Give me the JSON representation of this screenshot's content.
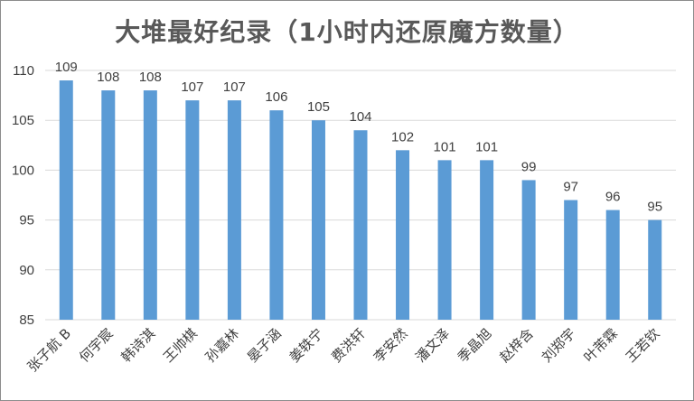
{
  "chart_data": {
    "type": "bar",
    "title": "大堆最好纪录（1小时内还原魔方数量）",
    "xlabel": "",
    "ylabel": "",
    "ylim": [
      85,
      110
    ],
    "yticks": [
      85,
      90,
      95,
      100,
      105,
      110
    ],
    "grid": true,
    "legend": "none",
    "bar_color": "#5b9bd5",
    "grid_color": "#d9d9d9",
    "categories": [
      "张子航 B",
      "何宇宸",
      "韩诗淇",
      "王帅棋",
      "孙嘉林",
      "晏子涵",
      "姜轶宁",
      "费洪轩",
      "李安然",
      "潘文泽",
      "季晶旭",
      "赵梓含",
      "刘郑宇",
      "叶芾霖",
      "王若钦"
    ],
    "values": [
      109,
      108,
      108,
      107,
      107,
      106,
      105,
      104,
      102,
      101,
      101,
      99,
      97,
      96,
      95
    ]
  }
}
